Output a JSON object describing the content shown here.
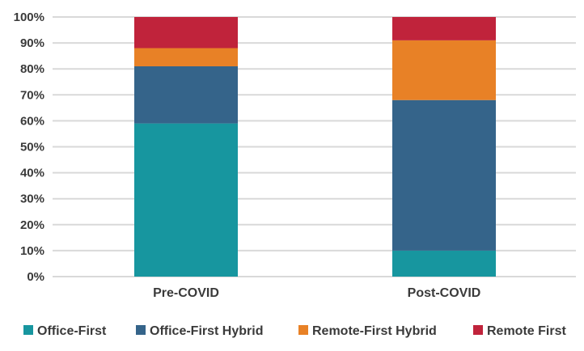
{
  "chart_data": {
    "type": "bar",
    "stacked": true,
    "percent": true,
    "categories": [
      "Pre-COVID",
      "Post-COVID"
    ],
    "series": [
      {
        "name": "Office-First",
        "color": "#17969f",
        "values": [
          59,
          10
        ]
      },
      {
        "name": "Office-First Hybrid",
        "color": "#35648a",
        "values": [
          22,
          58
        ]
      },
      {
        "name": "Remote-First Hybrid",
        "color": "#e88126",
        "values": [
          7,
          23
        ]
      },
      {
        "name": "Remote First",
        "color": "#c0233b",
        "values": [
          12,
          9
        ]
      }
    ],
    "ylim": [
      0,
      100
    ],
    "yticks": [
      "0%",
      "10%",
      "20%",
      "30%",
      "40%",
      "50%",
      "60%",
      "70%",
      "80%",
      "90%",
      "100%"
    ],
    "grid": true,
    "legend_position": "bottom",
    "title": "",
    "xlabel": "",
    "ylabel": ""
  }
}
